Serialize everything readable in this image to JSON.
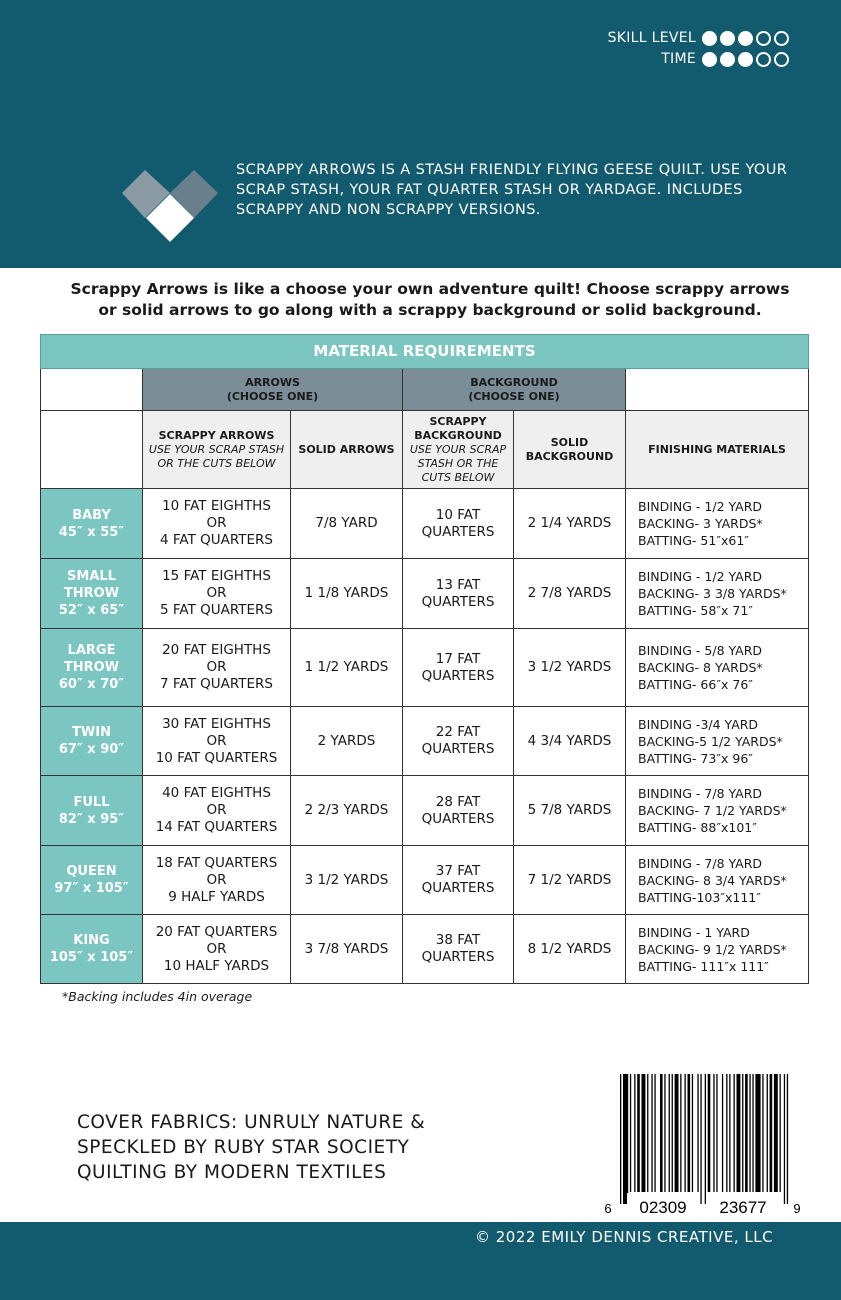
{
  "header": {
    "skill_label": "SKILL LEVEL",
    "skill_level": 3,
    "time_label": "TIME",
    "time_level": 3,
    "max_level": 5,
    "blurb": "SCRAPPY ARROWS IS A STASH FRIENDLY FLYING GEESE QUILT.  USE YOUR SCRAP STASH, YOUR FAT QUARTER STASH OR YARDAGE. INCLUDES SCRAPPY AND NON SCRAPPY VERSIONS.",
    "colors": {
      "brand": "#125a6d",
      "teal": "#7cc6c2",
      "slate": "#7b8d96"
    }
  },
  "intro": "Scrappy Arrows is like a choose your own adventure quilt!  Choose scrappy arrows or solid arrows to go along with a scrappy background or solid background.",
  "table": {
    "title": "MATERIAL REQUIREMENTS",
    "groups": {
      "arrows": "ARROWS",
      "arrows_note": "(CHOOSE ONE)",
      "background": "BACKGROUND",
      "background_note": "(CHOOSE ONE)"
    },
    "columns": {
      "scrappy_arrows": "SCRAPPY ARROWS",
      "scrappy_arrows_note": "USE YOUR SCRAP STASH OR THE CUTS BELOW",
      "solid_arrows": "SOLID ARROWS",
      "scrappy_bg": "SCRAPPY BACKGROUND",
      "scrappy_bg_note": "USE YOUR SCRAP STASH OR THE CUTS BELOW",
      "solid_bg": "SOLID BACKGROUND",
      "finishing": "FINISHING MATERIALS"
    },
    "rows": [
      {
        "size": [
          "BABY",
          "45″  x 55″"
        ],
        "scrappy_arrows": [
          "10 FAT EIGHTHS",
          "OR",
          "4 FAT QUARTERS"
        ],
        "solid_arrows": "7/8 YARD",
        "scrappy_bg": [
          "10 FAT",
          "QUARTERS"
        ],
        "solid_bg": "2 1/4 YARDS",
        "finishing": [
          "BINDING - 1/2 YARD",
          "BACKING- 3 YARDS*",
          "BATTING- 51″x61″"
        ]
      },
      {
        "size": [
          "SMALL",
          "THROW",
          "52″ x 65″"
        ],
        "scrappy_arrows": [
          "15 FAT EIGHTHS",
          "OR",
          "5 FAT QUARTERS"
        ],
        "solid_arrows": "1 1/8 YARDS",
        "scrappy_bg": [
          "13 FAT",
          "QUARTERS"
        ],
        "solid_bg": "2 7/8 YARDS",
        "finishing": [
          "BINDING - 1/2 YARD",
          "BACKING- 3 3/8 YARDS*",
          "BATTING- 58″x 71″"
        ]
      },
      {
        "size": [
          "LARGE",
          "THROW",
          "60″ x 70″"
        ],
        "scrappy_arrows": [
          "20 FAT EIGHTHS",
          "OR",
          "7 FAT QUARTERS"
        ],
        "solid_arrows": "1 1/2 YARDS",
        "scrappy_bg": [
          "17 FAT",
          "QUARTERS"
        ],
        "solid_bg": "3 1/2 YARDS",
        "finishing": [
          "BINDING - 5/8 YARD",
          "BACKING- 8 YARDS*",
          "BATTING- 66″x 76″"
        ]
      },
      {
        "size": [
          "TWIN",
          "67″ x 90″"
        ],
        "scrappy_arrows": [
          "30 FAT EIGHTHS",
          "OR",
          "10 FAT QUARTERS"
        ],
        "solid_arrows": "2 YARDS",
        "scrappy_bg": [
          "22 FAT",
          "QUARTERS"
        ],
        "solid_bg": "4 3/4 YARDS",
        "finishing": [
          "BINDING -3/4 YARD",
          "BACKING-5 1/2 YARDS*",
          "BATTING- 73″x 96″"
        ]
      },
      {
        "size": [
          "FULL",
          "82″ x 95″"
        ],
        "scrappy_arrows": [
          "40 FAT EIGHTHS",
          "OR",
          "14 FAT QUARTERS"
        ],
        "solid_arrows": "2 2/3 YARDS",
        "scrappy_bg": [
          "28 FAT",
          "QUARTERS"
        ],
        "solid_bg": "5 7/8 YARDS",
        "finishing": [
          "BINDING - 7/8 YARD",
          "BACKING- 7 1/2 YARDS*",
          "BATTING- 88″x101″"
        ]
      },
      {
        "size": [
          "QUEEN",
          "97″ x 105″"
        ],
        "scrappy_arrows": [
          "18 FAT QUARTERS",
          "OR",
          "9 HALF YARDS"
        ],
        "solid_arrows": "3 1/2 YARDS",
        "scrappy_bg": [
          "37 FAT",
          "QUARTERS"
        ],
        "solid_bg": "7 1/2 YARDS",
        "finishing": [
          "BINDING - 7/8 YARD",
          "BACKING- 8 3/4 YARDS*",
          "BATTING-103″x111″"
        ]
      },
      {
        "size": [
          "KING",
          "105″ x 105″"
        ],
        "scrappy_arrows": [
          "20 FAT QUARTERS",
          "OR",
          "10 HALF YARDS"
        ],
        "solid_arrows": "3 7/8 YARDS",
        "scrappy_bg": [
          "38 FAT",
          "QUARTERS"
        ],
        "solid_bg": "8 1/2 YARDS",
        "finishing": [
          "BINDING - 1 YARD",
          "BACKING- 9 1/2 YARDS*",
          "BATTING- 111″x 111″"
        ]
      }
    ]
  },
  "note": "*Backing includes 4in overage",
  "cover": [
    "COVER FABRICS:  UNRULY NATURE &",
    "SPECKLED BY RUBY STAR SOCIETY",
    "QUILTING BY MODERN TEXTILES"
  ],
  "barcode": {
    "first": "6",
    "left": "02309",
    "right": "23677",
    "last": "9"
  },
  "footer": "© 2022 EMILY DENNIS CREATIVE, LLC"
}
